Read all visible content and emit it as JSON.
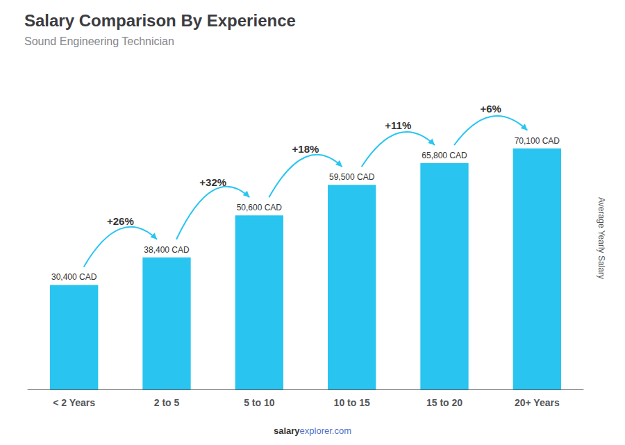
{
  "chart_data": {
    "type": "bar",
    "title": "Salary Comparison By Experience",
    "subtitle": "Sound Engineering Technician",
    "categories": [
      "< 2 Years",
      "2 to 5",
      "5 to 10",
      "10 to 15",
      "15 to 20",
      "20+ Years"
    ],
    "values": [
      30400,
      38400,
      50600,
      59500,
      65800,
      70100
    ],
    "value_labels": [
      "30,400 CAD",
      "38,400 CAD",
      "50,600 CAD",
      "59,500 CAD",
      "65,800 CAD",
      "70,100 CAD"
    ],
    "data_labels": true,
    "color": "#29c5f0",
    "ylabel": "Average Yearly Salary",
    "ylim": [
      0,
      88000
    ],
    "tick_labels": "x",
    "grid": false,
    "annotations": [
      "+26%",
      "+32%",
      "+18%",
      "+11%",
      "+6%"
    ],
    "watermark": [
      "salary",
      "explorer.com"
    ]
  }
}
